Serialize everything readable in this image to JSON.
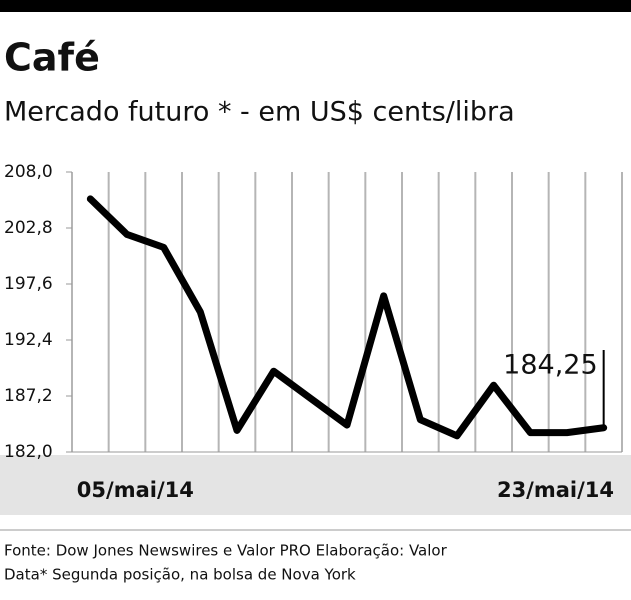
{
  "chart_data": {
    "type": "line",
    "title": "Café",
    "subtitle": "Mercado futuro * - em US$ cents/libra",
    "categories": [
      "05/mai/14",
      null,
      null,
      null,
      null,
      null,
      null,
      null,
      null,
      null,
      null,
      null,
      null,
      null,
      "23/mai/14"
    ],
    "values": [
      205.5,
      202.2,
      201.0,
      195.0,
      184.0,
      189.5,
      187.0,
      184.5,
      196.5,
      185.0,
      183.5,
      188.2,
      183.8,
      183.8,
      184.25
    ],
    "value_labels": [
      null,
      null,
      null,
      null,
      null,
      null,
      null,
      null,
      null,
      null,
      null,
      null,
      null,
      null,
      "184,25"
    ],
    "color": "#000000",
    "ylim": [
      182,
      208
    ],
    "yticks": [
      {
        "value": 182,
        "label": "182,0"
      },
      {
        "value": 187.2,
        "label": "187,2"
      },
      {
        "value": 192.4,
        "label": "192,4"
      },
      {
        "value": 197.6,
        "label": "197,6"
      },
      {
        "value": 202.8,
        "label": "202,8"
      },
      {
        "value": 208,
        "label": "208,0"
      }
    ],
    "source": [
      "Fonte: Dow Jones Newswires e Valor PRO Elaboração: Valor",
      "Data* Segunda posição, na bolsa de Nova York"
    ]
  }
}
